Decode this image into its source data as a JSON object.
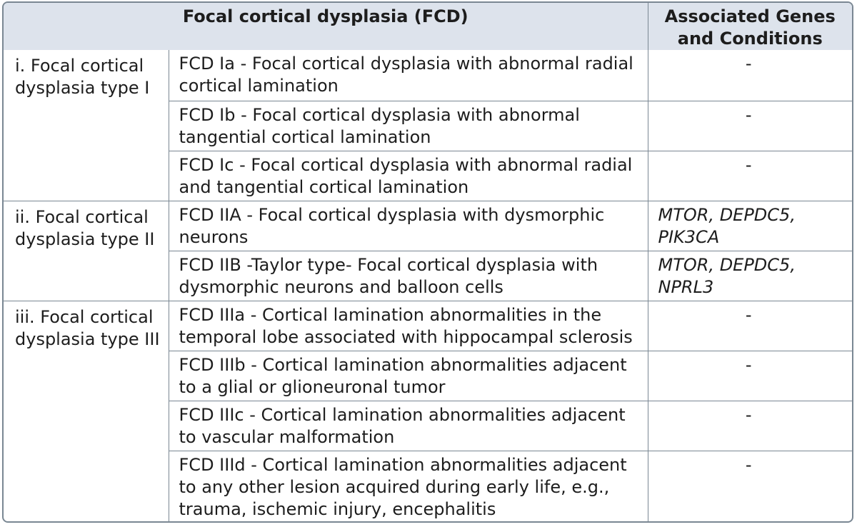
{
  "table": {
    "headers": {
      "fcd": "Focal cortical dysplasia (FCD)",
      "genes": "Associated Genes and Conditions"
    },
    "groups": [
      {
        "label": "i. Focal cortical dysplasia type I",
        "rows": [
          {
            "subtype": "FCD Ia - Focal cortical dysplasia with abnormal radial cortical lamination",
            "genes": "-"
          },
          {
            "subtype": "FCD Ib - Focal cortical dysplasia with abnormal tangential cortical lamination",
            "genes": "-"
          },
          {
            "subtype": "FCD Ic - Focal cortical dysplasia with abnormal radial and tangential cortical lamination",
            "genes": "-"
          }
        ]
      },
      {
        "label": "ii. Focal cortical dysplasia type II",
        "rows": [
          {
            "subtype": "FCD IIA - Focal cortical dysplasia with dysmorphic neurons",
            "genes": "MTOR, DEPDC5, PIK3CA"
          },
          {
            "subtype": "FCD IIB -Taylor type- Focal cortical dysplasia with dysmorphic neurons and balloon cells",
            "genes": "MTOR, DEPDC5, NPRL3"
          }
        ]
      },
      {
        "label": "iii. Focal cortical dysplasia type III",
        "rows": [
          {
            "subtype": "FCD IIIa - Cortical lamination abnormalities in the temporal lobe associated with hippocampal sclerosis",
            "genes": "-"
          },
          {
            "subtype": "FCD IIIb - Cortical lamination abnormalities adjacent to a glial or glioneuronal tumor",
            "genes": "-"
          },
          {
            "subtype": "FCD IIIc - Cortical lamination abnormalities adjacent to vascular malformation",
            "genes": "-"
          },
          {
            "subtype": "FCD IIId - Cortical lamination abnormalities adjacent to any other lesion acquired during early life, e.g., trauma, ischemic injury, encephalitis",
            "genes": "-"
          }
        ]
      }
    ]
  }
}
